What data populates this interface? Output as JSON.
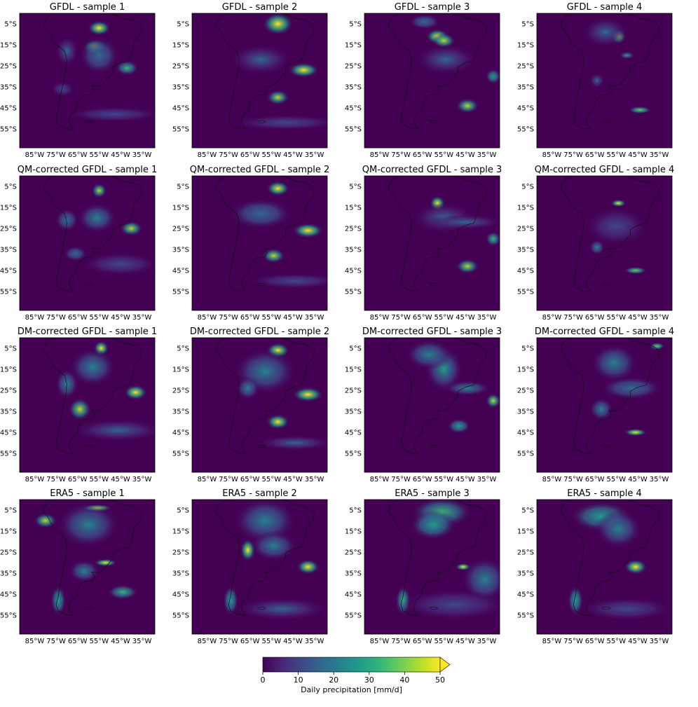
{
  "panels": [
    {
      "title": "GFDL - sample 1",
      "blobs": [
        [
          -55,
          -7,
          3,
          2,
          1.0
        ],
        [
          -57,
          -16,
          3,
          2,
          1.0
        ],
        [
          -42,
          -26,
          3,
          2,
          0.7
        ],
        [
          -55,
          -20,
          5,
          5,
          0.35
        ],
        [
          -70,
          -18,
          3,
          4,
          0.3
        ],
        [
          -72,
          -36,
          3,
          2,
          0.25
        ],
        [
          -48,
          -48,
          12,
          2,
          0.25
        ]
      ]
    },
    {
      "title": "GFDL - sample 2",
      "blobs": [
        [
          -52,
          -5,
          4,
          3,
          1.0
        ],
        [
          -40,
          -27,
          4,
          2,
          1.0
        ],
        [
          -52,
          -40,
          3,
          2,
          0.85
        ],
        [
          -60,
          -22,
          8,
          4,
          0.3
        ],
        [
          -48,
          -52,
          14,
          2,
          0.2
        ]
      ]
    },
    {
      "title": "GFDL - sample 3",
      "blobs": [
        [
          -58,
          -11,
          3,
          2,
          1.0
        ],
        [
          -55,
          -13,
          3,
          2,
          0.9
        ],
        [
          -44,
          -44,
          3,
          2,
          0.85
        ],
        [
          -32,
          -30,
          2,
          2,
          0.6
        ],
        [
          -64,
          -4,
          4,
          2,
          0.35
        ],
        [
          -54,
          -22,
          8,
          4,
          0.3
        ]
      ]
    },
    {
      "title": "GFDL - sample 4",
      "blobs": [
        [
          -54,
          -11,
          2,
          2,
          1.0
        ],
        [
          -44,
          -46,
          3,
          1,
          0.8
        ],
        [
          -50,
          -20,
          2,
          1,
          0.5
        ],
        [
          -64,
          -32,
          2,
          2,
          0.3
        ],
        [
          -60,
          -9,
          6,
          4,
          0.3
        ]
      ]
    },
    {
      "title": "QM-corrected GFDL - sample 1",
      "blobs": [
        [
          -55,
          -7,
          2,
          2,
          0.9
        ],
        [
          -40,
          -25,
          3,
          2,
          0.9
        ],
        [
          -56,
          -20,
          5,
          4,
          0.4
        ],
        [
          -70,
          -21,
          3,
          3,
          0.35
        ],
        [
          -66,
          -37,
          3,
          2,
          0.35
        ],
        [
          -45,
          -42,
          10,
          3,
          0.25
        ]
      ]
    },
    {
      "title": "QM-corrected GFDL - sample 2",
      "blobs": [
        [
          -52,
          -6,
          3,
          2,
          0.95
        ],
        [
          -38,
          -26,
          4,
          2,
          1.0
        ],
        [
          -54,
          -38,
          3,
          2,
          0.85
        ],
        [
          -60,
          -18,
          8,
          4,
          0.35
        ],
        [
          -44,
          -50,
          12,
          2,
          0.2
        ]
      ]
    },
    {
      "title": "QM-corrected GFDL - sample 3",
      "blobs": [
        [
          -58,
          -13,
          2,
          2,
          0.95
        ],
        [
          -44,
          -43,
          3,
          2,
          0.9
        ],
        [
          -32,
          -30,
          2,
          2,
          0.7
        ],
        [
          -55,
          -20,
          8,
          4,
          0.3
        ],
        [
          -45,
          -22,
          10,
          2,
          0.3
        ]
      ]
    },
    {
      "title": "QM-corrected GFDL - sample 4",
      "blobs": [
        [
          -54,
          -13,
          2,
          1,
          0.95
        ],
        [
          -46,
          -45,
          3,
          1,
          0.8
        ],
        [
          -64,
          -34,
          2,
          2,
          0.4
        ],
        [
          -55,
          -24,
          8,
          5,
          0.25
        ]
      ]
    },
    {
      "title": "DM-corrected GFDL - sample 1",
      "blobs": [
        [
          -54,
          -5,
          2,
          2,
          1.0
        ],
        [
          -38,
          -26,
          3,
          2,
          1.0
        ],
        [
          -64,
          -34,
          3,
          3,
          0.9
        ],
        [
          -58,
          -14,
          6,
          5,
          0.45
        ],
        [
          -70,
          -22,
          3,
          4,
          0.4
        ],
        [
          -46,
          -44,
          12,
          3,
          0.3
        ]
      ]
    },
    {
      "title": "DM-corrected GFDL - sample 2",
      "blobs": [
        [
          -52,
          -6,
          3,
          2,
          1.0
        ],
        [
          -38,
          -27,
          4,
          2,
          0.95
        ],
        [
          -52,
          -40,
          3,
          2,
          0.95
        ],
        [
          -58,
          -16,
          8,
          6,
          0.45
        ],
        [
          -66,
          -24,
          3,
          3,
          0.4
        ],
        [
          -44,
          -50,
          10,
          2,
          0.3
        ]
      ]
    },
    {
      "title": "DM-corrected GFDL - sample 3",
      "blobs": [
        [
          -55,
          -15,
          5,
          6,
          0.5
        ],
        [
          -32,
          -30,
          2,
          2,
          0.85
        ],
        [
          -48,
          -42,
          3,
          2,
          0.6
        ],
        [
          -62,
          -8,
          6,
          4,
          0.4
        ],
        [
          -44,
          -24,
          6,
          2,
          0.4
        ]
      ]
    },
    {
      "title": "DM-corrected GFDL - sample 4",
      "blobs": [
        [
          -46,
          -45,
          3,
          1,
          1.0
        ],
        [
          -36,
          -4,
          2,
          1,
          0.8
        ],
        [
          -56,
          -12,
          6,
          5,
          0.45
        ],
        [
          -62,
          -34,
          3,
          3,
          0.4
        ],
        [
          -48,
          -24,
          8,
          3,
          0.35
        ]
      ]
    },
    {
      "title": "ERA5 - sample 1",
      "blobs": [
        [
          -56,
          -4,
          4,
          1,
          1.0
        ],
        [
          -80,
          -10,
          3,
          2,
          0.9
        ],
        [
          -52,
          -30,
          3,
          1,
          0.95
        ],
        [
          -44,
          -44,
          4,
          2,
          0.65
        ],
        [
          -60,
          -12,
          8,
          6,
          0.4
        ],
        [
          -74,
          -48,
          2,
          4,
          0.6
        ],
        [
          -62,
          -34,
          4,
          3,
          0.45
        ]
      ]
    },
    {
      "title": "ERA5 - sample 2",
      "blobs": [
        [
          -66,
          -24,
          2,
          3,
          1.0
        ],
        [
          -38,
          -32,
          3,
          2,
          0.95
        ],
        [
          -58,
          -10,
          8,
          6,
          0.45
        ],
        [
          -74,
          -48,
          2,
          4,
          0.6
        ],
        [
          -54,
          -22,
          6,
          4,
          0.4
        ],
        [
          -50,
          -52,
          12,
          3,
          0.3
        ]
      ]
    },
    {
      "title": "ERA5 - sample 3",
      "blobs": [
        [
          -56,
          -6,
          8,
          4,
          0.7
        ],
        [
          -60,
          -12,
          6,
          4,
          0.6
        ],
        [
          -46,
          -32,
          2,
          1,
          0.95
        ],
        [
          -36,
          -38,
          6,
          6,
          0.4
        ],
        [
          -74,
          -48,
          2,
          4,
          0.65
        ],
        [
          -50,
          -50,
          14,
          4,
          0.25
        ]
      ]
    },
    {
      "title": "ERA5 - sample 4",
      "blobs": [
        [
          -46,
          -32,
          3,
          2,
          0.95
        ],
        [
          -62,
          -8,
          8,
          4,
          0.55
        ],
        [
          -54,
          -14,
          6,
          5,
          0.45
        ],
        [
          -74,
          -48,
          2,
          4,
          0.55
        ],
        [
          -50,
          -52,
          12,
          3,
          0.2
        ]
      ]
    }
  ],
  "lon_ticks": [
    "85°W",
    "75°W",
    "65°W",
    "55°W",
    "45°W",
    "35°W"
  ],
  "lon_values": [
    -85,
    -75,
    -65,
    -55,
    -45,
    -35
  ],
  "lat_ticks": [
    "5°S",
    "15°S",
    "25°S",
    "35°S",
    "45°S",
    "55°S"
  ],
  "lat_values": [
    -5,
    -15,
    -25,
    -35,
    -45,
    -55
  ],
  "extent": {
    "lon": [
      -92,
      -29
    ],
    "lat": [
      0,
      -64
    ]
  },
  "colorbar": {
    "label": "Daily precipitation [mm/d]",
    "ticks": [
      "0",
      "10",
      "20",
      "30",
      "40",
      "50"
    ],
    "min": 0,
    "max": 50,
    "extend": "max"
  },
  "colormap": [
    "#440154",
    "#482878",
    "#3e4989",
    "#31688e",
    "#26828e",
    "#1f9e89",
    "#35b779",
    "#6ece58",
    "#b5de2b",
    "#fde725"
  ],
  "background_color": "#440154",
  "coastline_color": "#111111"
}
